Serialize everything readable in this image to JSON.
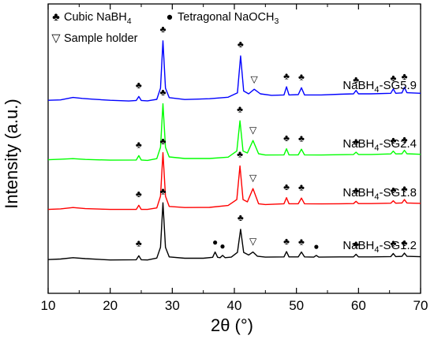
{
  "chart_data": {
    "type": "line",
    "xlabel": "2θ (°)",
    "ylabel": "Intensity (a.u.)",
    "xlim": [
      10,
      70
    ],
    "x_ticks": [
      "10",
      "20",
      "30",
      "40",
      "50",
      "60",
      "70"
    ],
    "grid": false,
    "legend": {
      "placement": "top-left",
      "entries": [
        {
          "symbol": "♣",
          "label": "Cubic NaBH",
          "sub": "4"
        },
        {
          "symbol": "●",
          "label": "Tetragonal NaOCH",
          "sub": "3"
        },
        {
          "symbol": "▽",
          "label": "Sample holder",
          "sub": ""
        }
      ]
    },
    "series": [
      {
        "name": "NaBH",
        "name_sub": "4",
        "name_suffix": "-SG5.9",
        "color": "#0000ff",
        "x": [
          10,
          12,
          14,
          15.5,
          17,
          20,
          23,
          24.2,
          24.6,
          25.0,
          26,
          27.5,
          28.1,
          28.5,
          28.9,
          29.5,
          32,
          36,
          39,
          40.5,
          41.0,
          41.5,
          42.3,
          43.2,
          44.2,
          46,
          48.0,
          48.4,
          48.8,
          50.3,
          50.8,
          51.3,
          54,
          57,
          59.2,
          59.6,
          60.0,
          62,
          65.2,
          65.6,
          66.0,
          67.0,
          67.4,
          67.8,
          70
        ],
        "y": [
          1.6,
          1.8,
          3.1,
          2.6,
          2.2,
          1.6,
          1.2,
          1.5,
          3.6,
          1.5,
          1.3,
          2.1,
          8.0,
          33,
          8.0,
          3.0,
          2.0,
          2.4,
          3.2,
          5.5,
          25,
          6.5,
          5.0,
          7.4,
          5.0,
          4.2,
          4.4,
          8.7,
          4.4,
          4.6,
          8.2,
          4.4,
          4.4,
          4.8,
          5.0,
          6.8,
          5.0,
          5.0,
          5.3,
          7.6,
          5.3,
          5.5,
          8.4,
          5.6,
          5.3
        ],
        "markers": [
          {
            "symbol": "♣",
            "x": 24.6,
            "y": 8.0
          },
          {
            "symbol": "♣",
            "x": 28.5,
            "y": 37.5
          },
          {
            "symbol": "♣",
            "x": 41.0,
            "y": 29.5
          },
          {
            "symbol": "▽",
            "x": 43.2,
            "y": 11.0
          },
          {
            "symbol": "♣",
            "x": 48.4,
            "y": 12.7
          },
          {
            "symbol": "♣",
            "x": 50.8,
            "y": 12.2
          },
          {
            "symbol": "♣",
            "x": 59.6,
            "y": 10.8
          },
          {
            "symbol": "♣",
            "x": 65.6,
            "y": 11.6
          },
          {
            "symbol": "♣",
            "x": 67.4,
            "y": 12.4
          }
        ]
      },
      {
        "name": "NaBH",
        "name_sub": "4",
        "name_suffix": "-SG2.4",
        "color": "#00ff00",
        "x": [
          10,
          12,
          14,
          16,
          20,
          24.2,
          24.6,
          25.0,
          26,
          27.5,
          28.1,
          28.5,
          28.9,
          29.5,
          32,
          36,
          39,
          40.4,
          40.9,
          41.4,
          42.1,
          43.0,
          43.9,
          45,
          48.0,
          48.4,
          48.8,
          50.3,
          50.8,
          51.3,
          54,
          57,
          59.2,
          59.6,
          60.0,
          62,
          65.2,
          65.6,
          66.0,
          67.0,
          67.4,
          67.8,
          70
        ],
        "y": [
          1.4,
          1.7,
          2.0,
          1.6,
          1.2,
          1.3,
          3.6,
          1.3,
          1.1,
          2.0,
          8.0,
          31,
          8.0,
          2.9,
          2.1,
          2.1,
          2.8,
          6.0,
          22,
          6.0,
          5.0,
          11.6,
          4.6,
          3.9,
          4.0,
          7.2,
          4.0,
          4.0,
          7.0,
          4.0,
          3.9,
          4.1,
          4.2,
          5.4,
          4.2,
          4.2,
          4.5,
          6.0,
          4.5,
          4.6,
          6.4,
          4.6,
          4.3
        ],
        "markers": [
          {
            "symbol": "♣",
            "x": 24.6,
            "y": 7.8
          },
          {
            "symbol": "♣",
            "x": 28.5,
            "y": 35.5
          },
          {
            "symbol": "♣",
            "x": 40.9,
            "y": 26.5
          },
          {
            "symbol": "▽",
            "x": 43.0,
            "y": 15.5
          },
          {
            "symbol": "♣",
            "x": 48.4,
            "y": 11.3
          },
          {
            "symbol": "♣",
            "x": 50.8,
            "y": 11.0
          },
          {
            "symbol": "♣",
            "x": 59.6,
            "y": 9.4
          },
          {
            "symbol": "♣",
            "x": 65.6,
            "y": 10.0
          },
          {
            "symbol": "♣",
            "x": 67.4,
            "y": 10.5
          }
        ]
      },
      {
        "name": "NaBH",
        "name_sub": "4",
        "name_suffix": "-SG1.8",
        "color": "#ff0000",
        "x": [
          10,
          12,
          14,
          16,
          20,
          24.2,
          24.6,
          25.0,
          26,
          27.5,
          28.1,
          28.5,
          28.9,
          29.5,
          32,
          36,
          39,
          40.4,
          40.9,
          41.4,
          42.1,
          43.0,
          43.9,
          45,
          48.0,
          48.4,
          48.8,
          50.3,
          50.8,
          51.3,
          54,
          57,
          59.2,
          59.6,
          60.0,
          62,
          65.2,
          65.6,
          66.0,
          67.0,
          67.4,
          67.8,
          70
        ],
        "y": [
          1.0,
          1.3,
          2.0,
          1.4,
          1.0,
          1.0,
          3.2,
          1.0,
          1.0,
          1.8,
          8.0,
          31,
          8.0,
          2.6,
          2.0,
          2.1,
          3.1,
          6.2,
          24,
          6.2,
          5.0,
          12,
          4.0,
          3.6,
          4.0,
          7.2,
          4.0,
          4.0,
          7.0,
          4.0,
          3.9,
          4.0,
          4.1,
          5.3,
          4.1,
          4.1,
          4.3,
          5.6,
          4.3,
          4.4,
          6.2,
          4.4,
          4.2
        ],
        "markers": [
          {
            "symbol": "♣",
            "x": 24.6,
            "y": 7.4
          },
          {
            "symbol": "♣",
            "x": 28.5,
            "y": 35.5
          },
          {
            "symbol": "♣",
            "x": 40.9,
            "y": 28.5
          },
          {
            "symbol": "▽",
            "x": 43.0,
            "y": 16.0
          },
          {
            "symbol": "♣",
            "x": 48.4,
            "y": 11.3
          },
          {
            "symbol": "♣",
            "x": 50.8,
            "y": 11.0
          },
          {
            "symbol": "♣",
            "x": 59.6,
            "y": 9.3
          },
          {
            "symbol": "♣",
            "x": 65.6,
            "y": 9.6
          },
          {
            "symbol": "♣",
            "x": 67.4,
            "y": 10.3
          }
        ]
      },
      {
        "name": "NaBH",
        "name_sub": "4",
        "name_suffix": "-SG1.2",
        "color": "#000000",
        "x": [
          10,
          12,
          14,
          16,
          20,
          24.2,
          24.6,
          25.0,
          26,
          27.5,
          28.1,
          28.5,
          28.9,
          29.5,
          32,
          35,
          36.5,
          36.9,
          37.3,
          37.7,
          38.1,
          38.5,
          39.5,
          40.5,
          41.0,
          41.5,
          42.3,
          43.0,
          43.7,
          45,
          48.0,
          48.4,
          48.8,
          50.3,
          50.8,
          51.3,
          52.8,
          53.2,
          53.6,
          57,
          59.2,
          59.6,
          60.0,
          62,
          65.2,
          65.6,
          66.0,
          67.0,
          67.4,
          67.8,
          70
        ],
        "y": [
          2.0,
          2.3,
          3.0,
          2.5,
          1.8,
          1.9,
          4.0,
          1.9,
          1.8,
          2.8,
          8.5,
          32,
          8.5,
          3.4,
          2.7,
          2.7,
          3.2,
          6.0,
          3.2,
          3.0,
          4.2,
          3.0,
          3.3,
          5.8,
          18,
          5.8,
          4.4,
          6.0,
          3.8,
          3.3,
          3.4,
          6.2,
          3.4,
          3.4,
          6.0,
          3.4,
          3.3,
          4.2,
          3.3,
          3.4,
          3.4,
          4.8,
          3.4,
          3.4,
          3.6,
          5.2,
          3.6,
          3.7,
          5.4,
          3.7,
          3.5
        ],
        "markers": [
          {
            "symbol": "♣",
            "x": 24.6,
            "y": 9.0
          },
          {
            "symbol": "♣",
            "x": 28.5,
            "y": 36.5
          },
          {
            "symbol": "●",
            "x": 36.9,
            "y": 9.5
          },
          {
            "symbol": "●",
            "x": 38.1,
            "y": 7.5
          },
          {
            "symbol": "♣",
            "x": 41.0,
            "y": 22.5
          },
          {
            "symbol": "▽",
            "x": 43.0,
            "y": 10.0
          },
          {
            "symbol": "♣",
            "x": 48.4,
            "y": 10.0
          },
          {
            "symbol": "♣",
            "x": 50.8,
            "y": 9.8
          },
          {
            "symbol": "●",
            "x": 53.2,
            "y": 7.2
          },
          {
            "symbol": "♣",
            "x": 59.6,
            "y": 8.6
          },
          {
            "symbol": "♣",
            "x": 65.6,
            "y": 9.0
          },
          {
            "symbol": "♣",
            "x": 67.4,
            "y": 9.2
          }
        ]
      }
    ]
  }
}
